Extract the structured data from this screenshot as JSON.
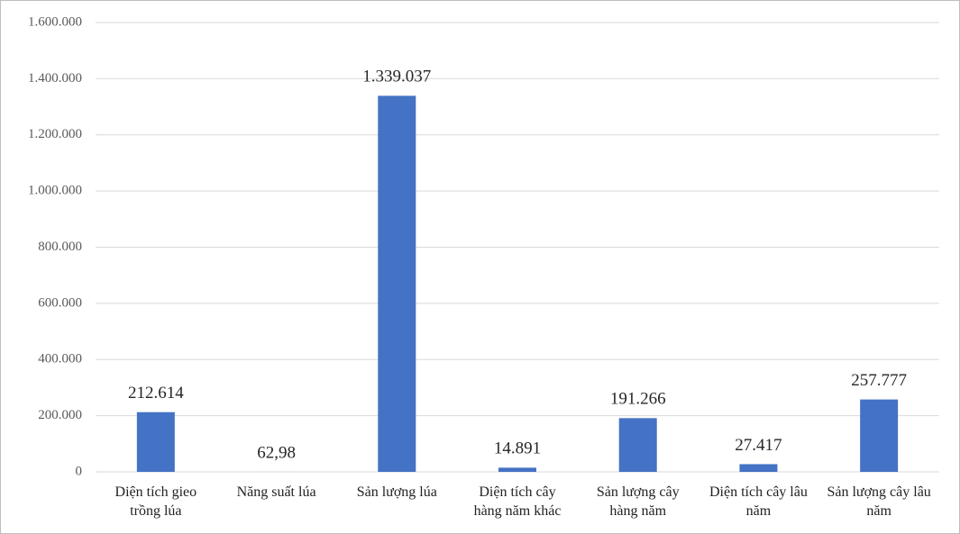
{
  "chart_data": {
    "type": "bar",
    "categories": [
      "Diện tích gieo trồng lúa",
      "Năng suất lúa",
      "Sản lượng lúa",
      "Diện tích cây hàng năm khác",
      "Sản lượng cây hàng năm",
      "Diện tích cây lâu năm",
      "Sản lượng cây lâu năm"
    ],
    "values": [
      212614,
      62.98,
      1339037,
      14891,
      191266,
      27417,
      257777
    ],
    "value_labels": [
      "212.614",
      "62,98",
      "1.339.037",
      "14.891",
      "191.266",
      "27.417",
      "257.777"
    ],
    "color": "#4472c4",
    "ylim": [
      0,
      1600000
    ],
    "yticks": [
      0,
      {
        "value": 200000,
        "label": "200.000"
      },
      {
        "value": 400000,
        "label": "400.000"
      },
      {
        "value": 600000,
        "label": "600.000"
      },
      {
        "value": 800000,
        "label": "800.000"
      },
      {
        "value": 1000000,
        "label": "1.000.000"
      },
      {
        "value": 1200000,
        "label": "1.200.000"
      },
      {
        "value": 1400000,
        "label": "1.400.000"
      },
      {
        "value": 1600000,
        "label": "1.600.000"
      }
    ],
    "grid": true
  }
}
